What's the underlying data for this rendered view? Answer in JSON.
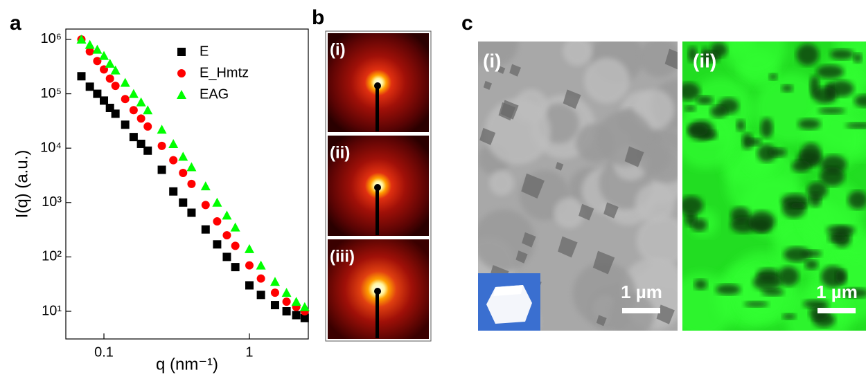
{
  "chart_data": {
    "type": "scatter",
    "x_label": "q (nm⁻¹)",
    "y_label": "I(q) (a.u.)",
    "x": [
      0.07,
      0.08,
      0.09,
      0.1,
      0.11,
      0.12,
      0.14,
      0.16,
      0.18,
      0.2,
      0.25,
      0.3,
      0.35,
      0.4,
      0.5,
      0.6,
      0.7,
      0.8,
      1.0,
      1.2,
      1.5,
      1.8,
      2.1,
      2.4
    ],
    "series": [
      {
        "name": "E",
        "color": "#000000",
        "marker": "square",
        "values": [
          210000,
          135000,
          100000,
          75000,
          55000,
          43000,
          27000,
          16000,
          12000,
          9000,
          4000,
          1600,
          1000,
          650,
          320,
          170,
          100,
          65,
          30,
          20,
          13,
          10,
          8.5,
          7.5
        ]
      },
      {
        "name": "E_Hmtz",
        "color": "#ff0000",
        "marker": "circle",
        "values": [
          1000000,
          600000,
          400000,
          280000,
          190000,
          140000,
          80000,
          50000,
          35000,
          25000,
          11000,
          6000,
          3500,
          2200,
          900,
          450,
          250,
          160,
          70,
          40,
          22,
          15,
          12,
          10
        ]
      },
      {
        "name": "EAG",
        "color": "#00ff00",
        "marker": "triangle",
        "values": [
          1000000,
          800000,
          650000,
          500000,
          360000,
          270000,
          160000,
          100000,
          70000,
          50000,
          22000,
          12000,
          7000,
          4500,
          2000,
          1000,
          580,
          350,
          140,
          70,
          35,
          22,
          15,
          12
        ]
      }
    ],
    "xlog": true,
    "ylog": true,
    "xlim": [
      0.0547,
      2.54
    ],
    "ylim": [
      3.1,
      1550000
    ],
    "xticks": [
      0.1,
      1
    ],
    "yticks": [
      {
        "value": 10,
        "label": "10¹"
      },
      {
        "value": 100,
        "label": "10²"
      },
      {
        "value": 1000,
        "label": "10³"
      },
      {
        "value": 10000,
        "label": "10⁴"
      },
      {
        "value": 100000,
        "label": "10⁵"
      },
      {
        "value": 1000000,
        "label": "10⁶"
      }
    ],
    "legend": "upper right",
    "grid": false
  },
  "panel_labels": [
    "a",
    "b",
    "c"
  ],
  "panel_b": {
    "labels": [
      "(i)",
      "(ii)",
      "(iii)"
    ]
  },
  "panel_c": {
    "labels": [
      "(i)",
      "(ii)"
    ],
    "scale_bars": [
      "1 µm",
      "1 µm"
    ]
  }
}
